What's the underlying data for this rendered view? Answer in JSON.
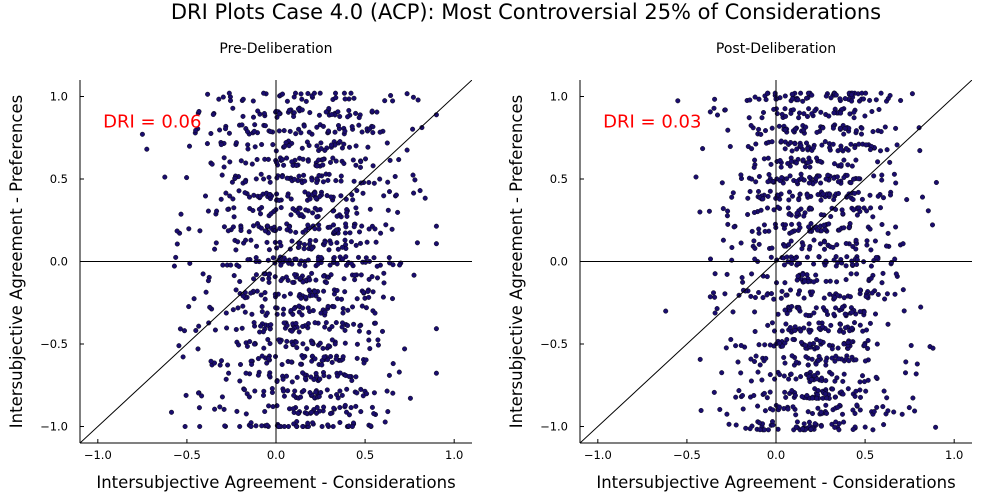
{
  "title": "DRI Plots Case 4.0 (ACP): Most Controversial 25% of Considerations",
  "chart_data": [
    {
      "type": "scatter",
      "title": "Pre-Deliberation",
      "xlabel": "Intersubjective Agreement - Considerations",
      "ylabel": "Intersubjective Agreement - Preferences",
      "xlim": [
        -1.1,
        1.1
      ],
      "ylim": [
        -1.1,
        1.1
      ],
      "xticks": [
        -1.0,
        -0.5,
        0.0,
        0.5,
        1.0
      ],
      "yticks": [
        -1.0,
        -0.5,
        0.0,
        0.5,
        1.0
      ],
      "xtick_labels": [
        "−1.0",
        "−0.5",
        "0.0",
        "0.5",
        "1.0"
      ],
      "ytick_labels": [
        "−1.0",
        "−0.5",
        "0.0",
        "0.5",
        "1.0"
      ],
      "grid": false,
      "point_color": "#1a0d6e",
      "reference_lines": [
        "x = 0",
        "y = 0",
        "y = x"
      ],
      "annotation": "DRI = 0.06",
      "annotation_color": "#ff0000",
      "points": {
        "count": 1100,
        "x_range": [
          -0.75,
          0.9
        ],
        "y_range": [
          -1.0,
          1.02
        ],
        "note_levels_y": [
          -1.0,
          -0.9,
          -0.8,
          -0.7,
          -0.6,
          -0.5,
          -0.4,
          -0.3,
          -0.2,
          -0.1,
          0.0,
          0.1,
          0.2,
          0.3,
          0.4,
          0.5,
          0.6,
          0.7,
          0.8,
          0.9,
          1.0
        ],
        "x_center": 0.15,
        "x_spread": 0.28
      }
    },
    {
      "type": "scatter",
      "title": "Post-Deliberation",
      "xlabel": "Intersubjective Agreement - Considerations",
      "ylabel": "Intersubjective Agreement - Preferences",
      "xlim": [
        -1.1,
        1.1
      ],
      "ylim": [
        -1.1,
        1.1
      ],
      "xticks": [
        -1.0,
        -0.5,
        0.0,
        0.5,
        1.0
      ],
      "yticks": [
        -1.0,
        -0.5,
        0.0,
        0.5,
        1.0
      ],
      "xtick_labels": [
        "−1.0",
        "−0.5",
        "0.0",
        "0.5",
        "1.0"
      ],
      "ytick_labels": [
        "−1.0",
        "−0.5",
        "0.0",
        "0.5",
        "1.0"
      ],
      "grid": false,
      "point_color": "#1a0d6e",
      "reference_lines": [
        "x = 0",
        "y = 0",
        "y = x"
      ],
      "annotation": "DRI = 0.03",
      "annotation_color": "#ff0000",
      "points": {
        "count": 1100,
        "x_range": [
          -0.78,
          0.9
        ],
        "y_range": [
          -1.02,
          1.02
        ],
        "note_levels_y": [
          -1.0,
          -0.9,
          -0.8,
          -0.7,
          -0.6,
          -0.5,
          -0.4,
          -0.3,
          -0.2,
          -0.1,
          0.0,
          0.1,
          0.2,
          0.3,
          0.4,
          0.5,
          0.6,
          0.7,
          0.8,
          0.9,
          1.0
        ],
        "x_center": 0.22,
        "x_spread": 0.25
      }
    }
  ]
}
